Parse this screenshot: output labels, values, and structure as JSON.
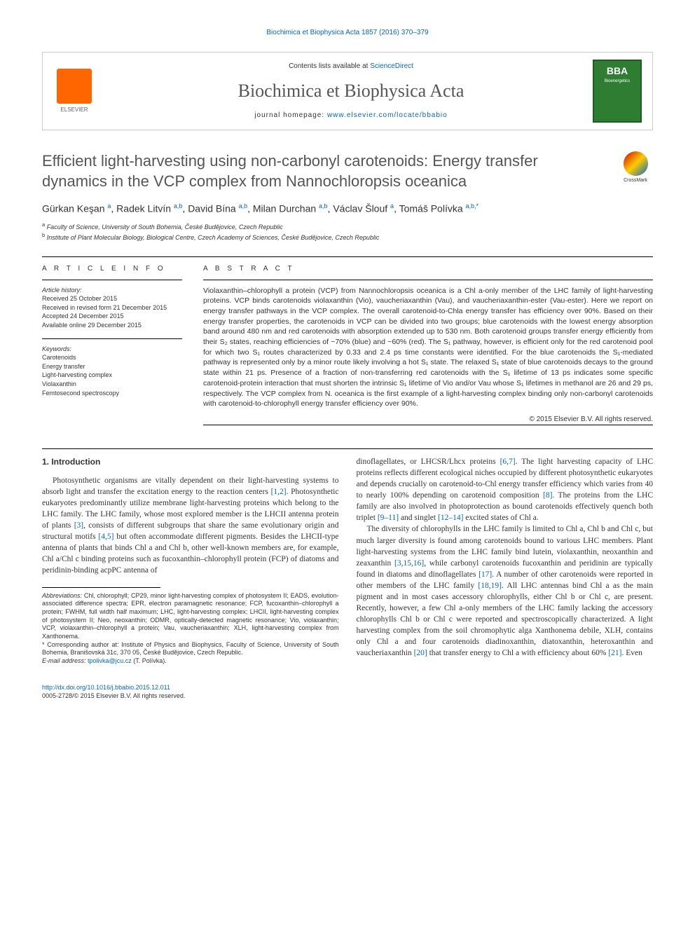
{
  "top_link": "Biochimica et Biophysica Acta 1857 (2016) 370–379",
  "header": {
    "elsevier": "ELSEVIER",
    "contents_prefix": "Contents lists available at ",
    "contents_link": "ScienceDirect",
    "journal_name": "Biochimica et Biophysica Acta",
    "homepage_prefix": "journal homepage: ",
    "homepage_url": "www.elsevier.com/locate/bbabio",
    "bba_label": "BBA",
    "bba_sub": "Bioenergetics"
  },
  "crossmark": "CrossMark",
  "title": "Efficient light-harvesting using non-carbonyl carotenoids: Energy transfer dynamics in the VCP complex from Nannochloropsis oceanica",
  "authors_html": "Gürkan Keşan <sup>a</sup>, Radek Litvín <sup>a,b</sup>, David Bína <sup>a,b</sup>, Milan Durchan <sup>a,b</sup>, Václav Šlouf <sup>a</sup>, Tomáš Polívka <sup>a,b,*</sup>",
  "affiliations": {
    "a": "Faculty of Science, University of South Bohemia, České Budějovice, Czech Republic",
    "b": "Institute of Plant Molecular Biology, Biological Centre, Czech Academy of Sciences, České Budějovice, Czech Republic"
  },
  "article_info": {
    "heading": "A R T I C L E   I N F O",
    "history_label": "Article history:",
    "received": "Received 25 October 2015",
    "revised": "Received in revised form 21 December 2015",
    "accepted": "Accepted 24 December 2015",
    "online": "Available online 29 December 2015",
    "keywords_label": "Keywords:",
    "keywords": [
      "Carotenoids",
      "Energy transfer",
      "Light-harvesting complex",
      "Violaxanthin",
      "Femtosecond spectroscopy"
    ]
  },
  "abstract": {
    "heading": "A B S T R A C T",
    "text": "Violaxanthin–chlorophyll a protein (VCP) from Nannochloropsis oceanica is a Chl a-only member of the LHC family of light-harvesting proteins. VCP binds carotenoids violaxanthin (Vio), vaucheriaxanthin (Vau), and vaucheriaxanthin-ester (Vau-ester). Here we report on energy transfer pathways in the VCP complex. The overall carotenoid-to-Chla energy transfer has efficiency over 90%. Based on their energy transfer properties, the carotenoids in VCP can be divided into two groups; blue carotenoids with the lowest energy absorption band around 480 nm and red carotenoids with absorption extended up to 530 nm. Both carotenoid groups transfer energy efficiently from their S₂ states, reaching efficiencies of ~70% (blue) and ~60% (red). The S₁ pathway, however, is efficient only for the red carotenoid pool for which two S₁ routes characterized by 0.33 and 2.4 ps time constants were identified. For the blue carotenoids the S₁-mediated pathway is represented only by a minor route likely involving a hot S₁ state. The relaxed S₁ state of blue carotenoids decays to the ground state within 21 ps. Presence of a fraction of non-transferring red carotenoids with the S₁ lifetime of 13 ps indicates some specific carotenoid-protein interaction that must shorten the intrinsic S₁ lifetime of Vio and/or Vau whose S₁ lifetimes in methanol are 26 and 29 ps, respectively. The VCP complex from N. oceanica is the first example of a light-harvesting complex binding only non-carbonyl carotenoids with carotenoid-to-chlorophyll energy transfer efficiency over 90%.",
    "copyright": "© 2015 Elsevier B.V. All rights reserved."
  },
  "body": {
    "section1_heading": "1. Introduction",
    "para1_pre": "Photosynthetic organisms are vitally dependent on their light-harvesting systems to absorb light and transfer the excitation energy to the reaction centers ",
    "ref12": "[1,2]",
    "para1_mid1": ". Photosynthetic eukaryotes predominantly utilize membrane light-harvesting proteins which belong to the LHC family. The LHC family, whose most explored member is the LHCII antenna protein of plants ",
    "ref3": "[3]",
    "para1_mid2": ", consists of different subgroups that share the same evolutionary origin and structural motifs ",
    "ref45": "[4,5]",
    "para1_post": " but often accommodate different pigments. Besides the LHCII-type antenna of plants that binds Chl a and Chl b, other well-known members are, for example, Chl a/Chl c binding proteins such as fucoxanthin–chlorophyll protein (FCP) of diatoms and peridinin-binding acpPC antenna of",
    "para2_pre": "dinoflagellates, or LHCSR/Lhcx proteins ",
    "ref67": "[6,7]",
    "para2_mid1": ". The light harvesting capacity of LHC proteins reflects different ecological niches occupied by different photosynthetic eukaryotes and depends crucially on carotenoid-to-Chl energy transfer efficiency which varies from 40 to nearly 100% depending on carotenoid composition ",
    "ref8": "[8]",
    "para2_mid2": ". The proteins from the LHC family are also involved in photoprotection as bound carotenoids effectively quench both triplet ",
    "ref911": "[9–11]",
    "para2_mid3": " and singlet ",
    "ref1214": "[12–14]",
    "para2_post": " excited states of Chl a.",
    "para3_pre": "The diversity of chlorophylls in the LHC family is limited to Chl a, Chl b and Chl c, but much larger diversity is found among carotenoids bound to various LHC members. Plant light-harvesting systems from the LHC family bind lutein, violaxanthin, neoxanthin and zeaxanthin ",
    "ref31516": "[3,15,16]",
    "para3_mid1": ", while carbonyl carotenoids fucoxanthin and peridinin are typically found in diatoms and dinoflagellates ",
    "ref17": "[17]",
    "para3_mid2": ". A number of other carotenoids were reported in other members of the LHC family ",
    "ref1819": "[18,19]",
    "para3_mid3": ". All LHC antennas bind Chl a as the main pigment and in most cases accessory chlorophylls, either Chl b or Chl c, are present. Recently, however, a few Chl a-only members of the LHC family lacking the accessory chlorophylls Chl b or Chl c were reported and spectroscopically characterized. A light harvesting complex from the soil chromophytic alga Xanthonema debile, XLH, contains only Chl a and four carotenoids diadinoxanthin, diatoxanthin, heteroxanthin and vaucheriaxanthin ",
    "ref20": "[20]",
    "para3_mid4": " that transfer energy to Chl a with efficiency about 60% ",
    "ref21": "[21]",
    "para3_post": ". Even"
  },
  "footnotes": {
    "abbrev_label": "Abbreviations:",
    "abbrev_text": " Chl, chlorophyll; CP29, minor light-harvesting complex of photosystem II; EADS, evolution-associated difference spectra; EPR, electron paramagnetic resonance; FCP, fucoxanthin–chlorophyll a protein; FWHM, full width half maximum; LHC, light-harvesting complex; LHCII, light-harvesting complex of photosystem II; Neo, neoxanthin; ODMR, optically-detected magnetic resonance; Vio, violaxanthin; VCP, violaxanthin–chlorophyll a protein; Vau, vaucheriaxanthin; XLH, light-harvesting complex from Xanthonema.",
    "corr_label": "* Corresponding author at:",
    "corr_text": " Institute of Physics and Biophysics, Faculty of Science, University of South Bohemia, Branišovská 31c, 370 05, České Budějovice, Czech Republic.",
    "email_label": "E-mail address:",
    "email": "tpolivka@jcu.cz",
    "email_suffix": " (T. Polívka)."
  },
  "footer": {
    "doi": "http://dx.doi.org/10.1016/j.bbabio.2015.12.011",
    "issn": "0005-2728/© 2015 Elsevier B.V. All rights reserved."
  },
  "colors": {
    "link": "#0066cc",
    "elsevier_orange": "#ff6600",
    "bba_green": "#2e7d32",
    "title_grey": "#555555",
    "text": "#333333"
  }
}
